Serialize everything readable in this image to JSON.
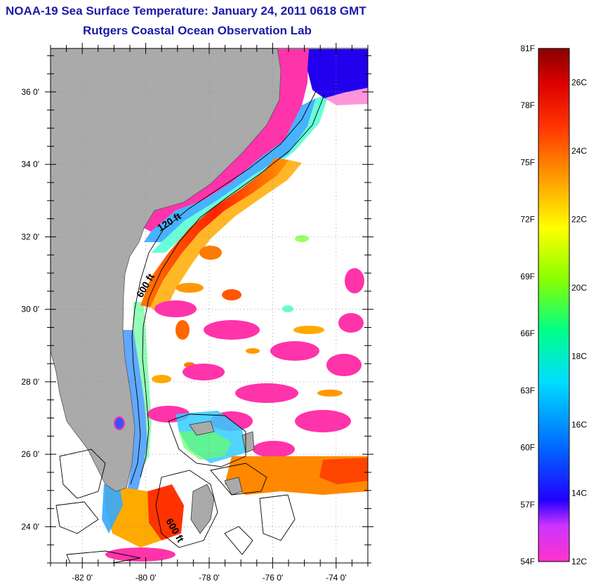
{
  "header": {
    "title": "NOAA-19 Sea Surface Temperature:  January 24, 2011 0618 GMT",
    "subtitle": "Rutgers Coastal Ocean Observation Lab"
  },
  "map": {
    "lat_range": [
      23,
      37.2
    ],
    "lon_range": [
      -83,
      -73
    ],
    "lat_ticks": [
      "24 0'",
      "26 0'",
      "28 0'",
      "30 0'",
      "32 0'",
      "34 0'",
      "36 0'"
    ],
    "lon_ticks": [
      "-82 0'",
      "-80 0'",
      "-78 0'",
      "-76 0'",
      "-74 0'"
    ],
    "depth_labels": [
      "120 ft",
      "600 ft",
      "600 ft"
    ],
    "colors": {
      "land": "#aaaaaa",
      "no_data": "#ffffff",
      "warm_stream": "#ff3311",
      "cold_shelf": "#ff33aa"
    }
  },
  "colorbar": {
    "fahrenheit_labels": [
      "81F",
      "78F",
      "75F",
      "72F",
      "69F",
      "66F",
      "63F",
      "60F",
      "57F",
      "54F"
    ],
    "celsius_labels": [
      "26C",
      "24C",
      "22C",
      "20C",
      "18C",
      "16C",
      "14C",
      "12C"
    ],
    "range_f": [
      54,
      81
    ],
    "range_c": [
      12,
      27
    ]
  }
}
